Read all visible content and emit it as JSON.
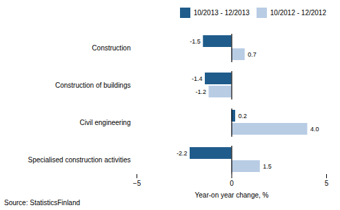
{
  "chart_data": {
    "type": "bar",
    "orientation": "horizontal",
    "categories": [
      "Specialised construction activities",
      "Civil engineering",
      "Construction of buildings",
      "Construction"
    ],
    "series": [
      {
        "name": "10/2013 - 12/2013",
        "color": "#1f5c8b",
        "values": [
          -2.2,
          0.2,
          -1.4,
          -1.5
        ]
      },
      {
        "name": "10/2012 - 12/2012",
        "color": "#b8cce4",
        "values": [
          1.5,
          4.0,
          -1.2,
          0.7
        ],
        "value_labels": [
          "1.5",
          "4.0",
          "-1.2",
          "0.7"
        ]
      }
    ],
    "xlim": [
      -5,
      5
    ],
    "xticks": [
      -5,
      0,
      5
    ],
    "xlabel": "Year-on year change, %",
    "data_labels": true,
    "legend": "upper right",
    "grid": false,
    "annotations": [
      "Source: StatisticsFinland"
    ]
  }
}
